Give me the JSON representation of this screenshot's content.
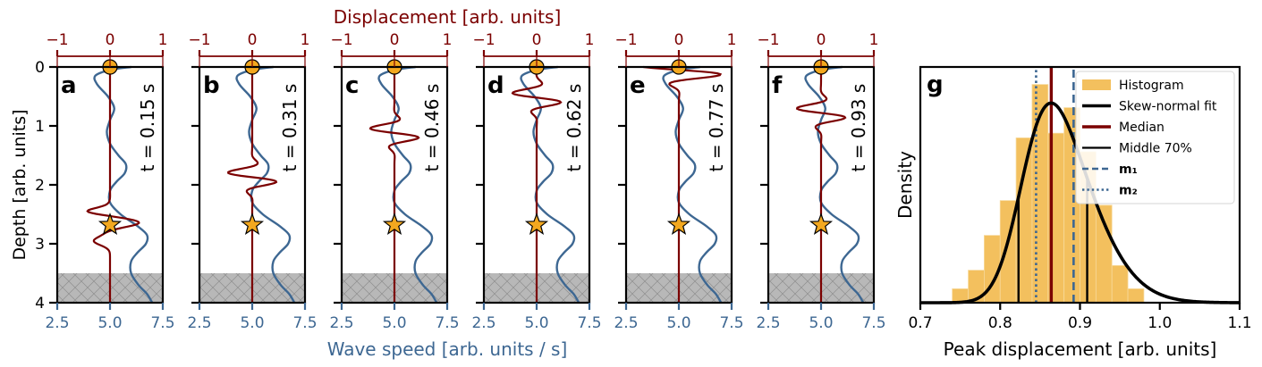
{
  "figure": {
    "top_xlabel": "Displacement [arb. units]",
    "bottom_xlabel": "Wave speed [arb. units / s]",
    "ylabel": "Depth [arb. units]",
    "colors": {
      "displacement": "#7b0000",
      "wave_speed": "#3d6792",
      "marker": "#f3a81f",
      "halfspace": "#b8b8b8",
      "hist": "#f3c05e"
    }
  },
  "chart_data": [
    {
      "type": "line",
      "panels": [
        {
          "letter": "a",
          "time_label": "t = 0.15 s",
          "peak_depth": 2.63
        },
        {
          "letter": "b",
          "time_label": "t = 0.31 s",
          "peak_depth": 1.87
        },
        {
          "letter": "c",
          "time_label": "t = 0.46 s",
          "peak_depth": 1.12
        },
        {
          "letter": "d",
          "time_label": "t = 0.62 s",
          "peak_depth": 0.52
        },
        {
          "letter": "e",
          "time_label": "t = 0.77 s",
          "peak_depth": 0.05
        },
        {
          "letter": "f",
          "time_label": "t = 0.93 s",
          "peak_depth": 0.78
        }
      ],
      "star_depth": 2.68,
      "halfspace_top_depth": 3.5,
      "wave_speed_xlim": [
        2.5,
        7.5
      ],
      "wave_speed_ticks": [
        "2.5",
        "5.0",
        "7.5"
      ],
      "displacement_xlim": [
        -1.0,
        1.0
      ],
      "displacement_ticks": [
        "−1",
        "0",
        "1"
      ],
      "depth_ylim": [
        4,
        0
      ],
      "depth_ticks": [
        "0",
        "1",
        "2",
        "3",
        "4"
      ],
      "wave_speed_profile": {
        "depth": [
          0.0,
          0.05,
          0.15,
          0.3,
          0.5,
          0.7,
          0.9,
          1.1,
          1.3,
          1.5,
          1.65,
          1.8,
          1.95,
          2.1,
          2.3,
          2.5,
          2.7,
          2.85,
          3.0,
          3.15,
          3.3,
          3.5,
          3.7,
          3.85,
          4.0
        ],
        "speed": [
          6.0,
          5.0,
          4.3,
          4.4,
          4.9,
          5.2,
          5.0,
          4.85,
          5.0,
          5.4,
          5.75,
          5.7,
          5.3,
          5.0,
          5.0,
          5.5,
          6.3,
          6.75,
          6.7,
          6.3,
          6.0,
          6.0,
          6.35,
          6.75,
          7.0
        ]
      }
    },
    {
      "type": "histogram",
      "letter": "g",
      "xlabel": "Peak displacement [arb. units]",
      "ylabel": "Density",
      "xlim": [
        0.7,
        1.1
      ],
      "x_ticks": [
        "0.7",
        "0.8",
        "0.9",
        "1.0",
        "1.1"
      ],
      "bin_edges": [
        0.74,
        0.76,
        0.78,
        0.8,
        0.82,
        0.84,
        0.86,
        0.88,
        0.9,
        0.92,
        0.94,
        0.96,
        0.98
      ],
      "counts": [
        0.06,
        0.14,
        0.29,
        0.44,
        0.71,
        0.94,
        0.73,
        0.84,
        0.65,
        0.42,
        0.16,
        0.06
      ],
      "skew_normal_fit": {
        "loc": 0.83,
        "scale": 0.065,
        "shape": 2.2
      },
      "median": 0.864,
      "middle_70": [
        0.823,
        0.909
      ],
      "m1": 0.892,
      "m2": 0.845,
      "legend": [
        "Histogram",
        "Skew-normal fit",
        "Median",
        "Middle 70%",
        "m₁",
        "m₂"
      ],
      "legend_loc": "upper right"
    }
  ]
}
